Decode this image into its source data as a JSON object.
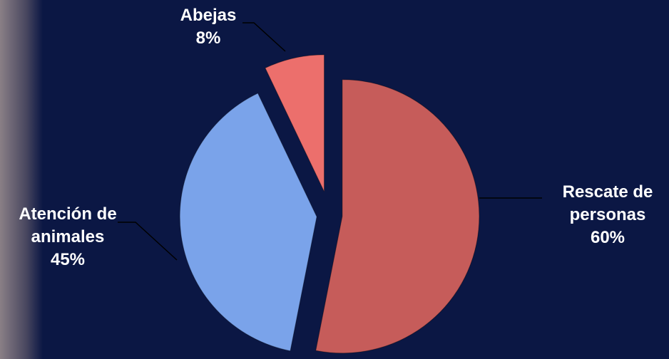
{
  "chart_data": {
    "type": "pie",
    "categories": [
      "Rescate de personas",
      "Atención de animales",
      "Abejas"
    ],
    "values": [
      60,
      45,
      8
    ],
    "value_labels": [
      "60%",
      "45%",
      "8%"
    ],
    "colors": [
      "#c65c5a",
      "#7aa3ea",
      "#ec6f6c"
    ]
  }
}
